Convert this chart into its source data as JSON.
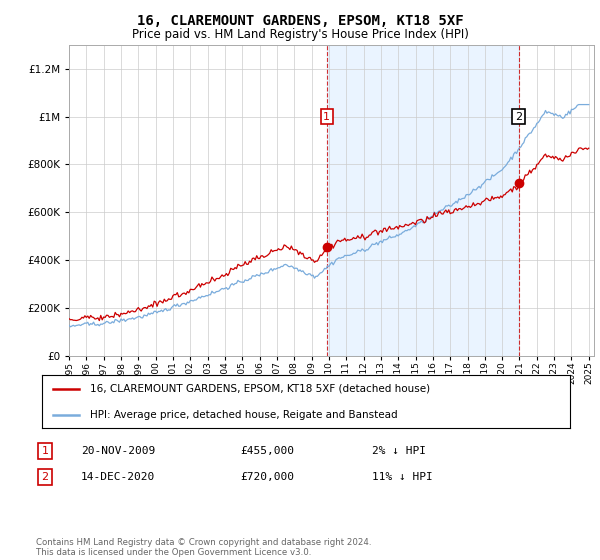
{
  "title": "16, CLAREMOUNT GARDENS, EPSOM, KT18 5XF",
  "subtitle": "Price paid vs. HM Land Registry's House Price Index (HPI)",
  "ylim": [
    0,
    1300000
  ],
  "yticks": [
    0,
    200000,
    400000,
    600000,
    800000,
    1000000,
    1200000
  ],
  "x_start_year": 1995,
  "x_end_year": 2025,
  "sale1_year": 2009.88,
  "sale1_price": 455000,
  "sale1_date": "20-NOV-2009",
  "sale1_pct": "2%",
  "sale2_year": 2020.96,
  "sale2_price": 720000,
  "sale2_date": "14-DEC-2020",
  "sale2_pct": "11%",
  "hpi_color": "#7aacdc",
  "price_color": "#cc0000",
  "vline_color": "#cc0000",
  "shade_color": "#ddeeff",
  "background_color": "#ffffff",
  "plot_bg_color": "#ffffff",
  "label1_box_color": "#cc0000",
  "label2_box_color": "#ffffff",
  "legend_label_price": "16, CLAREMOUNT GARDENS, EPSOM, KT18 5XF (detached house)",
  "legend_label_hpi": "HPI: Average price, detached house, Reigate and Banstead",
  "footer": "Contains HM Land Registry data © Crown copyright and database right 2024.\nThis data is licensed under the Open Government Licence v3.0."
}
